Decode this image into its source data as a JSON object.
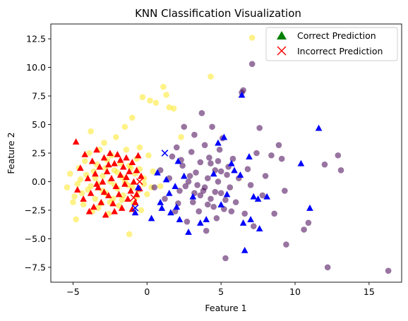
{
  "chart_data": {
    "type": "scatter",
    "title": "KNN Classification Visualization",
    "xlabel": "Feature 1",
    "ylabel": "Feature 2",
    "xlim": [
      -6.5,
      17.2
    ],
    "ylim": [
      -8.8,
      13.8
    ],
    "x_ticks": [
      -5,
      0,
      5,
      10,
      15
    ],
    "y_ticks": [
      -7.5,
      -5.0,
      -2.5,
      0.0,
      2.5,
      5.0,
      7.5,
      10.0,
      12.5
    ],
    "x_tick_labels": [
      "−5",
      "0",
      "5",
      "10",
      "15"
    ],
    "y_tick_labels": [
      "−7.5",
      "−5.0",
      "−2.5",
      "0.0",
      "2.5",
      "5.0",
      "7.5",
      "10.0",
      "12.5"
    ],
    "grid": false,
    "legend_position": "top-right",
    "legend": [
      {
        "label": "Correct Prediction",
        "marker": "triangle",
        "color": "#008000"
      },
      {
        "label": "Incorrect Prediction",
        "marker": "x",
        "color": "#ff0000"
      }
    ],
    "series": [
      {
        "class": "yellow",
        "color": "#fde725",
        "marker": "circle",
        "alpha": 0.55,
        "points": [
          [
            -5.4,
            -0.5
          ],
          [
            -5.2,
            0.7
          ],
          [
            -4.9,
            -1.3
          ],
          [
            -4.8,
            -3.3
          ],
          [
            -4.6,
            1.2
          ],
          [
            -4.5,
            0.2
          ],
          [
            -4.3,
            -2.0
          ],
          [
            -4.2,
            1.8
          ],
          [
            -4.0,
            -0.7
          ],
          [
            -3.9,
            2.5
          ],
          [
            -3.8,
            4.4
          ],
          [
            -3.7,
            -2.6
          ],
          [
            -3.6,
            0.9
          ],
          [
            -3.5,
            -1.5
          ],
          [
            -3.4,
            1.5
          ],
          [
            -3.3,
            -0.2
          ],
          [
            -3.2,
            2.8
          ],
          [
            -3.1,
            -1.9
          ],
          [
            -3.0,
            0.5
          ],
          [
            -2.9,
            3.4
          ],
          [
            -2.8,
            -1.0
          ],
          [
            -2.7,
            1.9
          ],
          [
            -2.6,
            -2.8
          ],
          [
            -2.5,
            0.0
          ],
          [
            -2.4,
            2.3
          ],
          [
            -2.3,
            -1.5
          ],
          [
            -2.2,
            1.0
          ],
          [
            -2.1,
            3.9
          ],
          [
            -2.0,
            -0.6
          ],
          [
            -1.9,
            -2.1
          ],
          [
            -1.8,
            1.6
          ],
          [
            -1.7,
            0.4
          ],
          [
            -1.6,
            -1.2
          ],
          [
            -1.5,
            4.8
          ],
          [
            -1.4,
            2.8
          ],
          [
            -1.3,
            -0.3
          ],
          [
            -1.2,
            -4.6
          ],
          [
            -1.1,
            1.2
          ],
          [
            -1.0,
            5.6
          ],
          [
            -0.9,
            -1.9
          ],
          [
            -0.8,
            0.7
          ],
          [
            -0.7,
            2.0
          ],
          [
            -0.6,
            -0.8
          ],
          [
            -0.5,
            3.0
          ],
          [
            -0.4,
            -2.5
          ],
          [
            -0.3,
            7.4
          ],
          [
            -0.2,
            0.3
          ],
          [
            0.0,
            -1.1
          ],
          [
            0.1,
            2.3
          ],
          [
            0.2,
            7.1
          ],
          [
            0.4,
            0.9
          ],
          [
            0.6,
            6.9
          ],
          [
            0.9,
            -0.4
          ],
          [
            1.1,
            8.3
          ],
          [
            1.3,
            7.6
          ],
          [
            1.5,
            6.5
          ],
          [
            1.8,
            6.4
          ],
          [
            2.3,
            3.9
          ],
          [
            4.3,
            9.2
          ],
          [
            7.1,
            12.6
          ],
          [
            -5.0,
            -1.8
          ],
          [
            -4.7,
            -0.2
          ],
          [
            -4.4,
            -1.0
          ],
          [
            -4.1,
            0.6
          ],
          [
            -3.8,
            -0.4
          ],
          [
            -3.5,
            0.3
          ],
          [
            -3.3,
            -2.3
          ],
          [
            -3.0,
            -0.8
          ],
          [
            -2.8,
            1.2
          ],
          [
            -2.5,
            -1.8
          ],
          [
            -2.2,
            -0.3
          ],
          [
            -2.0,
            0.8
          ],
          [
            -1.7,
            -1.6
          ],
          [
            -1.5,
            0.0
          ],
          [
            -1.2,
            1.4
          ],
          [
            -1.0,
            -0.5
          ],
          [
            -0.7,
            -1.3
          ],
          [
            -0.5,
            1.1
          ],
          [
            -0.2,
            -0.2
          ],
          [
            0.3,
            -0.5
          ]
        ]
      },
      {
        "class": "purple",
        "color": "#440154",
        "marker": "circle",
        "alpha": 0.55,
        "points": [
          [
            0.5,
            -0.5
          ],
          [
            0.9,
            1.0
          ],
          [
            1.2,
            -1.5
          ],
          [
            1.5,
            0.3
          ],
          [
            1.7,
            2.2
          ],
          [
            1.9,
            -2.6
          ],
          [
            2.0,
            3.0
          ],
          [
            2.2,
            -0.8
          ],
          [
            2.4,
            1.4
          ],
          [
            2.5,
            4.8
          ],
          [
            2.7,
            -3.5
          ],
          [
            2.8,
            0.0
          ],
          [
            3.0,
            2.6
          ],
          [
            3.1,
            -1.8
          ],
          [
            3.2,
            4.1
          ],
          [
            3.3,
            0.8
          ],
          [
            3.5,
            -2.6
          ],
          [
            3.6,
            1.7
          ],
          [
            3.7,
            6.0
          ],
          [
            3.8,
            -0.8
          ],
          [
            3.9,
            3.2
          ],
          [
            4.0,
            -4.3
          ],
          [
            4.1,
            0.3
          ],
          [
            4.2,
            2.1
          ],
          [
            4.3,
            -1.5
          ],
          [
            4.4,
            4.8
          ],
          [
            4.5,
            -2.2
          ],
          [
            4.6,
            1.0
          ],
          [
            4.7,
            -3.2
          ],
          [
            4.8,
            0.0
          ],
          [
            4.9,
            2.8
          ],
          [
            5.0,
            -1.0
          ],
          [
            5.1,
            3.8
          ],
          [
            5.2,
            -2.4
          ],
          [
            5.3,
            -6.7
          ],
          [
            5.4,
            0.6
          ],
          [
            5.6,
            -0.5
          ],
          [
            5.8,
            2.0
          ],
          [
            6.0,
            -1.8
          ],
          [
            6.2,
            0.3
          ],
          [
            6.4,
            7.8
          ],
          [
            6.5,
            8.0
          ],
          [
            6.6,
            -2.8
          ],
          [
            6.8,
            1.1
          ],
          [
            7.0,
            -0.3
          ],
          [
            7.1,
            10.3
          ],
          [
            7.2,
            -3.9
          ],
          [
            7.4,
            2.5
          ],
          [
            7.6,
            4.7
          ],
          [
            7.8,
            -1.2
          ],
          [
            8.0,
            0.5
          ],
          [
            8.4,
            2.3
          ],
          [
            8.6,
            -2.8
          ],
          [
            8.9,
            3.2
          ],
          [
            9.1,
            2.0
          ],
          [
            9.3,
            -0.8
          ],
          [
            9.4,
            -5.5
          ],
          [
            10.6,
            -4.2
          ],
          [
            10.9,
            -3.6
          ],
          [
            12.0,
            1.5
          ],
          [
            12.2,
            -7.5
          ],
          [
            12.9,
            2.3
          ],
          [
            13.1,
            1.0
          ],
          [
            16.3,
            -7.8
          ],
          [
            3.4,
            -0.3
          ],
          [
            3.6,
            -1.2
          ],
          [
            3.9,
            -0.5
          ],
          [
            4.1,
            -2.0
          ],
          [
            4.3,
            1.6
          ],
          [
            4.6,
            -0.9
          ],
          [
            4.8,
            1.8
          ],
          [
            5.0,
            0.9
          ],
          [
            5.3,
            -1.6
          ],
          [
            5.5,
            1.3
          ],
          [
            5.7,
            -2.6
          ],
          [
            2.1,
            -1.9
          ],
          [
            2.3,
            1.9
          ],
          [
            2.6,
            -0.4
          ],
          [
            2.9,
            0.5
          ],
          [
            3.2,
            -1.0
          ]
        ]
      },
      {
        "class": "red",
        "color": "#ff0000",
        "marker": "triangle",
        "alpha": 1.0,
        "points": [
          [
            -4.8,
            3.5
          ],
          [
            -4.7,
            -0.7
          ],
          [
            -4.5,
            1.2
          ],
          [
            -4.3,
            -1.5
          ],
          [
            -4.2,
            2.4
          ],
          [
            -4.0,
            0.3
          ],
          [
            -3.8,
            -1.0
          ],
          [
            -3.7,
            1.8
          ],
          [
            -3.6,
            -2.2
          ],
          [
            -3.5,
            0.7
          ],
          [
            -3.4,
            2.8
          ],
          [
            -3.3,
            -0.5
          ],
          [
            -3.2,
            1.3
          ],
          [
            -3.1,
            -1.8
          ],
          [
            -3.0,
            0.0
          ],
          [
            -2.9,
            2.1
          ],
          [
            -2.8,
            -2.9
          ],
          [
            -2.7,
            0.9
          ],
          [
            -2.6,
            -1.2
          ],
          [
            -2.5,
            2.5
          ],
          [
            -2.4,
            0.3
          ],
          [
            -2.3,
            -1.9
          ],
          [
            -2.2,
            1.6
          ],
          [
            -2.1,
            -0.4
          ],
          [
            -2.0,
            2.4
          ],
          [
            -1.9,
            -1.1
          ],
          [
            -1.8,
            0.6
          ],
          [
            -1.7,
            -2.3
          ],
          [
            -1.6,
            1.3
          ],
          [
            -1.5,
            -0.2
          ],
          [
            -1.4,
            2.1
          ],
          [
            -1.3,
            -1.5
          ],
          [
            -1.2,
            0.9
          ],
          [
            -1.1,
            -0.8
          ],
          [
            -1.0,
            1.7
          ],
          [
            -0.9,
            0.0
          ],
          [
            -0.8,
            -1.8
          ],
          [
            -0.7,
            1.0
          ],
          [
            -0.6,
            2.3
          ],
          [
            -0.5,
            -0.6
          ],
          [
            -0.4,
            0.5
          ],
          [
            -3.9,
            -2.6
          ],
          [
            -3.4,
            -0.2
          ],
          [
            -2.9,
            -0.9
          ],
          [
            -2.6,
            1.5
          ],
          [
            -2.2,
            -2.6
          ],
          [
            -1.8,
            1.9
          ],
          [
            -1.4,
            0.4
          ],
          [
            -1.0,
            -2.4
          ],
          [
            -0.7,
            -1.1
          ]
        ]
      },
      {
        "class": "blue",
        "color": "#0000ff",
        "marker": "triangle",
        "alpha": 1.0,
        "points": [
          [
            -0.6,
            -0.5
          ],
          [
            -0.8,
            -2.7
          ],
          [
            0.3,
            -3.2
          ],
          [
            0.7,
            0.8
          ],
          [
            0.9,
            -1.8
          ],
          [
            1.3,
            0.2
          ],
          [
            1.6,
            -2.7
          ],
          [
            1.9,
            -0.4
          ],
          [
            2.1,
            1.8
          ],
          [
            2.2,
            -3.3
          ],
          [
            2.5,
            0.5
          ],
          [
            2.8,
            -4.4
          ],
          [
            3.1,
            -1.3
          ],
          [
            3.6,
            -3.6
          ],
          [
            4.0,
            -3.3
          ],
          [
            4.5,
            0.7
          ],
          [
            4.8,
            3.4
          ],
          [
            5.2,
            3.9
          ],
          [
            5.4,
            -1.1
          ],
          [
            5.7,
            1.6
          ],
          [
            6.3,
            0.6
          ],
          [
            6.5,
            -3.6
          ],
          [
            6.6,
            -6.0
          ],
          [
            6.9,
            2.2
          ],
          [
            7.2,
            -1.3
          ],
          [
            7.5,
            -1.5
          ],
          [
            7.6,
            -4.1
          ],
          [
            8.1,
            -1.3
          ],
          [
            10.4,
            1.6
          ],
          [
            11.0,
            -2.3
          ],
          [
            11.6,
            4.7
          ],
          [
            6.4,
            7.6
          ],
          [
            1.5,
            -1.0
          ],
          [
            2.0,
            -2.2
          ],
          [
            5.0,
            -2.0
          ],
          [
            5.9,
            1.0
          ],
          [
            7.0,
            -3.3
          ],
          [
            1.0,
            -2.3
          ]
        ]
      },
      {
        "class": "misclassified",
        "color": "#0000ff",
        "marker": "x",
        "alpha": 1.0,
        "points": [
          [
            1.2,
            2.5
          ],
          [
            -0.8,
            -2.3
          ]
        ]
      },
      {
        "class": "misclassified",
        "color": "#ff0000",
        "marker": "x",
        "alpha": 1.0,
        "points": [
          [
            -0.5,
            0.0
          ],
          [
            -0.9,
            -1.4
          ]
        ]
      }
    ]
  }
}
